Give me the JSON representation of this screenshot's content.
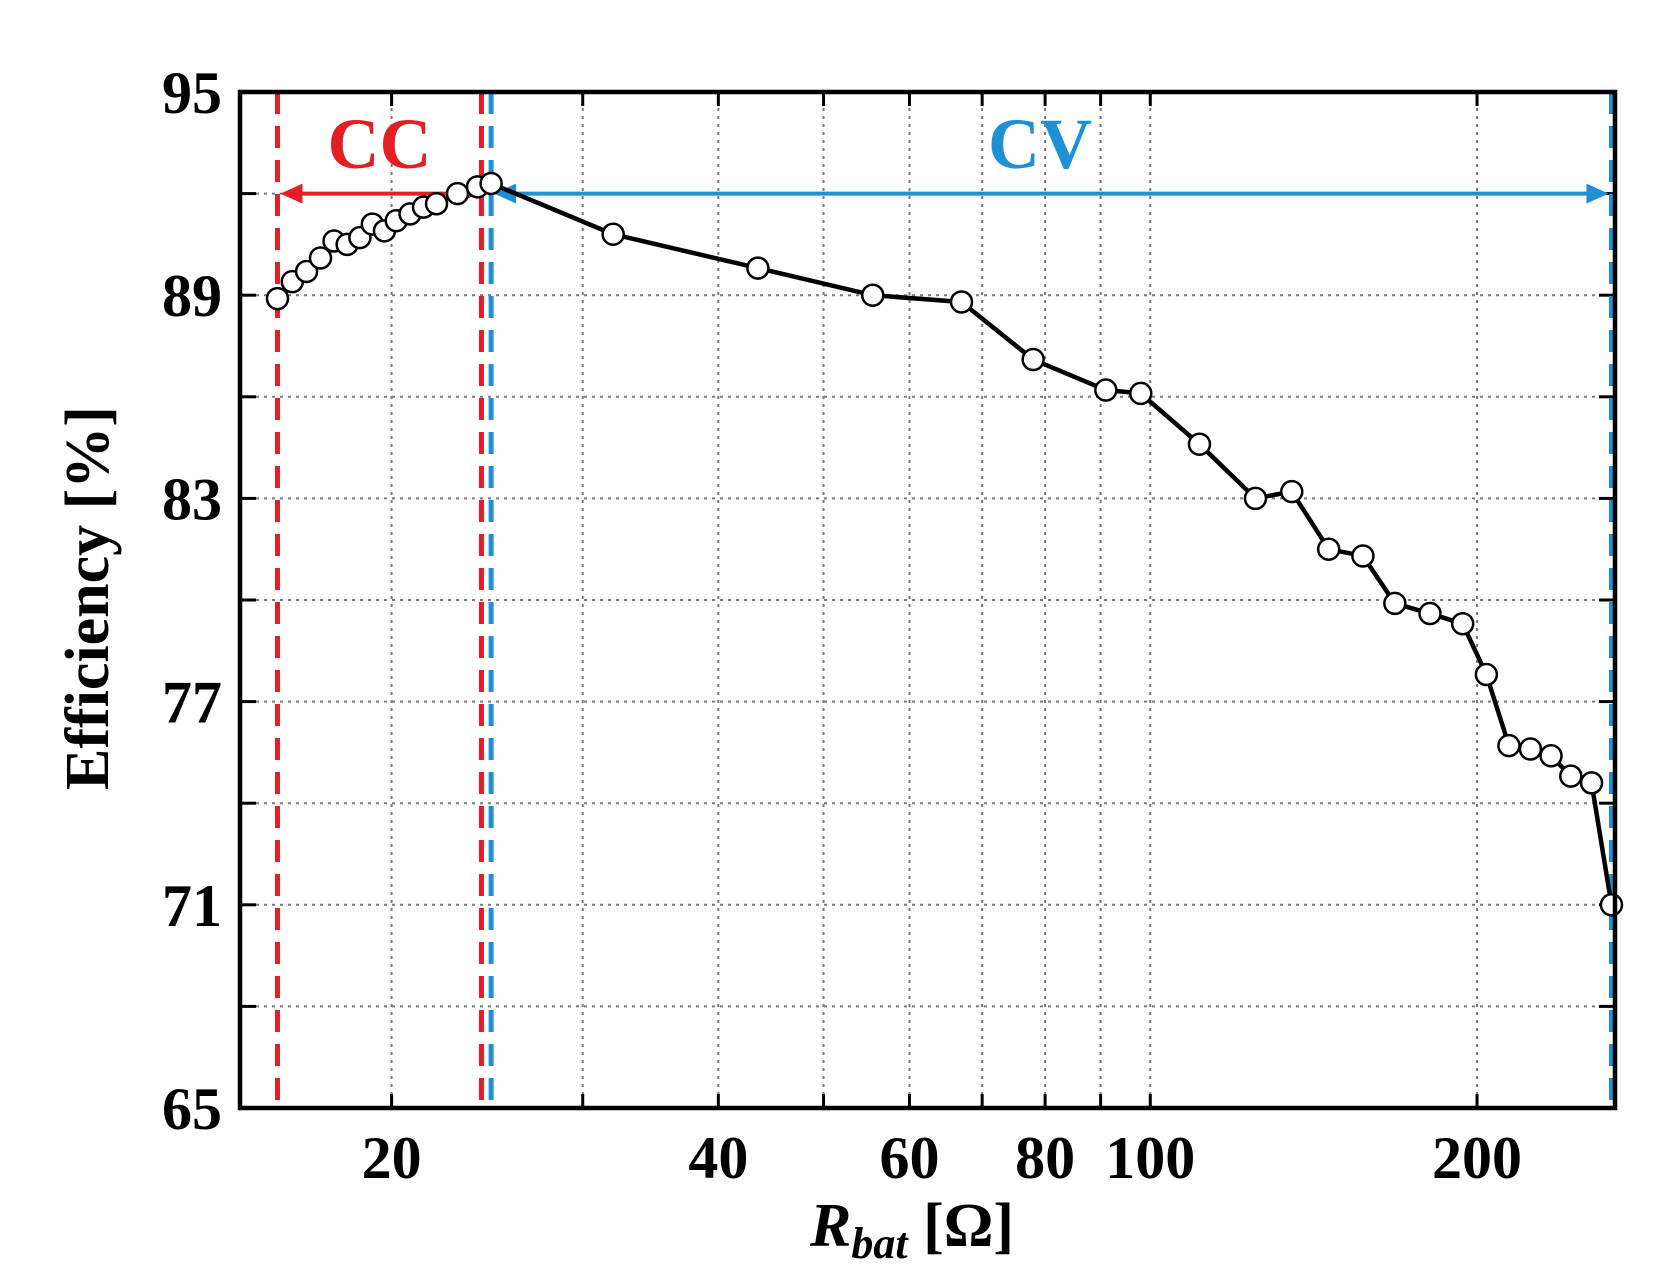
{
  "chart_data": {
    "type": "line",
    "title": "",
    "xlabel": {
      "main": "R",
      "sub": "bat",
      "unit": " [Ω]"
    },
    "ylabel": "Efficiency [%]",
    "xscale": "log",
    "xlim": [
      14.5,
      268
    ],
    "ylim": [
      65,
      95
    ],
    "xticks": [
      20,
      40,
      60,
      80,
      100,
      200
    ],
    "xtick_labels": [
      "20",
      "40",
      "60",
      "80",
      "100",
      "200"
    ],
    "x_minor_gridlines": [
      30,
      50,
      70,
      90
    ],
    "yticks": [
      65,
      71,
      77,
      83,
      89,
      95
    ],
    "ytick_labels": [
      "65",
      "71",
      "77",
      "83",
      "89",
      "95"
    ],
    "y_minor_gridlines": [
      68,
      74,
      80,
      86,
      92
    ],
    "grid": true,
    "series": [
      {
        "name": "CC",
        "marker": "circle-open",
        "line": false,
        "x": [
          15.7,
          16.2,
          16.7,
          17.2,
          17.7,
          18.2,
          18.7,
          19.2,
          19.7,
          20.2,
          20.8,
          21.4,
          22.0,
          23.0,
          24.0
        ],
        "y": [
          88.9,
          89.4,
          89.7,
          90.1,
          90.6,
          90.5,
          90.7,
          91.1,
          90.9,
          91.2,
          91.4,
          91.6,
          91.7,
          92.0,
          92.2
        ]
      },
      {
        "name": "CV",
        "marker": "circle-open",
        "line": true,
        "x": [
          24.7,
          32.0,
          43.5,
          55.5,
          67.0,
          78.0,
          91.0,
          98.0,
          111.0,
          125.0,
          135.0,
          146.0,
          157.0,
          168.0,
          181.0,
          194.0,
          204.0,
          214.0,
          224.0,
          234.0,
          244.0,
          255.0,
          266.0
        ],
        "y": [
          92.3,
          90.8,
          89.8,
          89.0,
          88.8,
          87.1,
          86.2,
          86.1,
          84.6,
          83.0,
          83.2,
          81.5,
          81.3,
          79.9,
          79.6,
          79.3,
          77.8,
          75.7,
          75.6,
          75.4,
          74.8,
          74.6,
          71.0
        ]
      }
    ],
    "regions": [
      {
        "label": "CC",
        "color": "#e31e24",
        "x_start": 15.7,
        "x_end": 24.2
      },
      {
        "label": "CV",
        "color": "#1f8fd6",
        "x_start": 24.7,
        "x_end": 266.0
      }
    ],
    "arrow_y": 92,
    "colors": {
      "cc": "#e31e24",
      "cv": "#1f8fd6",
      "line": "#000000",
      "grid": "#7a7a7a"
    }
  }
}
